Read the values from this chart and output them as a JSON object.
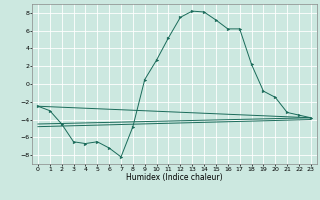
{
  "xlabel": "Humidex (Indice chaleur)",
  "bg_color": "#cce8e0",
  "grid_color": "#ffffff",
  "line_color": "#1a6b5a",
  "ylim": [
    -9,
    9
  ],
  "xlim": [
    -0.5,
    23.5
  ],
  "x_ticks": [
    0,
    1,
    2,
    3,
    4,
    5,
    6,
    7,
    8,
    9,
    10,
    11,
    12,
    13,
    14,
    15,
    16,
    17,
    18,
    19,
    20,
    21,
    22,
    23
  ],
  "y_ticks": [
    -8,
    -6,
    -4,
    -2,
    0,
    2,
    4,
    6,
    8
  ],
  "main_line_x": [
    0,
    1,
    2,
    3,
    4,
    5,
    6,
    7,
    8,
    9,
    10,
    11,
    12,
    13,
    14,
    15,
    16,
    17,
    18,
    19,
    20,
    21,
    22,
    23
  ],
  "main_line_y": [
    -2.5,
    -3.0,
    -4.5,
    -6.5,
    -6.7,
    -6.5,
    -7.2,
    -8.2,
    -4.8,
    0.5,
    2.7,
    5.2,
    7.5,
    8.2,
    8.1,
    7.2,
    6.2,
    6.2,
    2.2,
    -0.8,
    -1.5,
    -3.2,
    -3.5,
    -3.8
  ],
  "line2_x": [
    0,
    23
  ],
  "line2_y": [
    -2.5,
    -3.8
  ],
  "line3_x": [
    0,
    23
  ],
  "line3_y": [
    -4.5,
    -3.8
  ],
  "line4_x": [
    0,
    23
  ],
  "line4_y": [
    -4.8,
    -4.0
  ],
  "marker_x": [
    0,
    1,
    2,
    3,
    4,
    5,
    6,
    7,
    8,
    9,
    10,
    11,
    12,
    13,
    14,
    15,
    16,
    17,
    18,
    19,
    20,
    21,
    22,
    23
  ],
  "marker_y": [
    -2.5,
    -3.0,
    -4.5,
    -6.5,
    -6.7,
    -6.5,
    -7.2,
    -8.2,
    -4.8,
    0.5,
    2.7,
    5.2,
    7.5,
    8.2,
    8.1,
    7.2,
    6.2,
    6.2,
    2.2,
    -0.8,
    -1.5,
    -3.2,
    -3.5,
    -3.8
  ]
}
